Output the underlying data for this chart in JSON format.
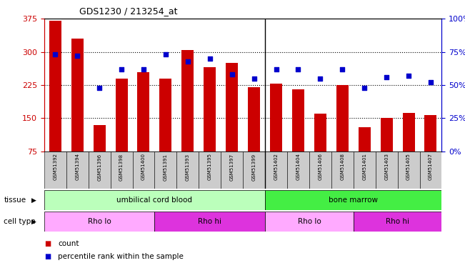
{
  "title": "GDS1230 / 213254_at",
  "samples": [
    "GSM51392",
    "GSM51394",
    "GSM51396",
    "GSM51398",
    "GSM51400",
    "GSM51391",
    "GSM51393",
    "GSM51395",
    "GSM51397",
    "GSM51399",
    "GSM51402",
    "GSM51404",
    "GSM51406",
    "GSM51408",
    "GSM51401",
    "GSM51403",
    "GSM51405",
    "GSM51407"
  ],
  "counts": [
    370,
    330,
    135,
    240,
    255,
    240,
    305,
    265,
    275,
    220,
    228,
    215,
    160,
    225,
    130,
    150,
    162,
    158
  ],
  "percentiles": [
    73,
    72,
    48,
    62,
    62,
    73,
    68,
    70,
    58,
    55,
    62,
    62,
    55,
    62,
    48,
    56,
    57,
    52
  ],
  "ymin": 75,
  "ymax": 375,
  "yticks": [
    75,
    150,
    225,
    300,
    375
  ],
  "y2ticks_vals": [
    0,
    25,
    50,
    75,
    100
  ],
  "y2ticks_labels": [
    "0%",
    "25%",
    "50%",
    "75%",
    "100%"
  ],
  "bar_color": "#cc0000",
  "dot_color": "#0000cc",
  "left_axis_color": "#cc0000",
  "right_axis_color": "#0000cc",
  "bg_color": "#ffffff",
  "xtick_bg_color": "#cccccc",
  "tissue_groups": [
    {
      "label": "umbilical cord blood",
      "start": 0,
      "end": 10,
      "color": "#bbffbb"
    },
    {
      "label": "bone marrow",
      "start": 10,
      "end": 18,
      "color": "#44ee44"
    }
  ],
  "cell_type_groups": [
    {
      "label": "Rho lo",
      "start": 0,
      "end": 5,
      "color": "#ffaaff"
    },
    {
      "label": "Rho hi",
      "start": 5,
      "end": 10,
      "color": "#dd33dd"
    },
    {
      "label": "Rho lo",
      "start": 10,
      "end": 14,
      "color": "#ffaaff"
    },
    {
      "label": "Rho hi",
      "start": 14,
      "end": 18,
      "color": "#dd33dd"
    }
  ],
  "legend_items": [
    {
      "label": "count",
      "color": "#cc0000"
    },
    {
      "label": "percentile rank within the sample",
      "color": "#0000cc"
    }
  ],
  "n_samples": 18,
  "sep_after": 9
}
